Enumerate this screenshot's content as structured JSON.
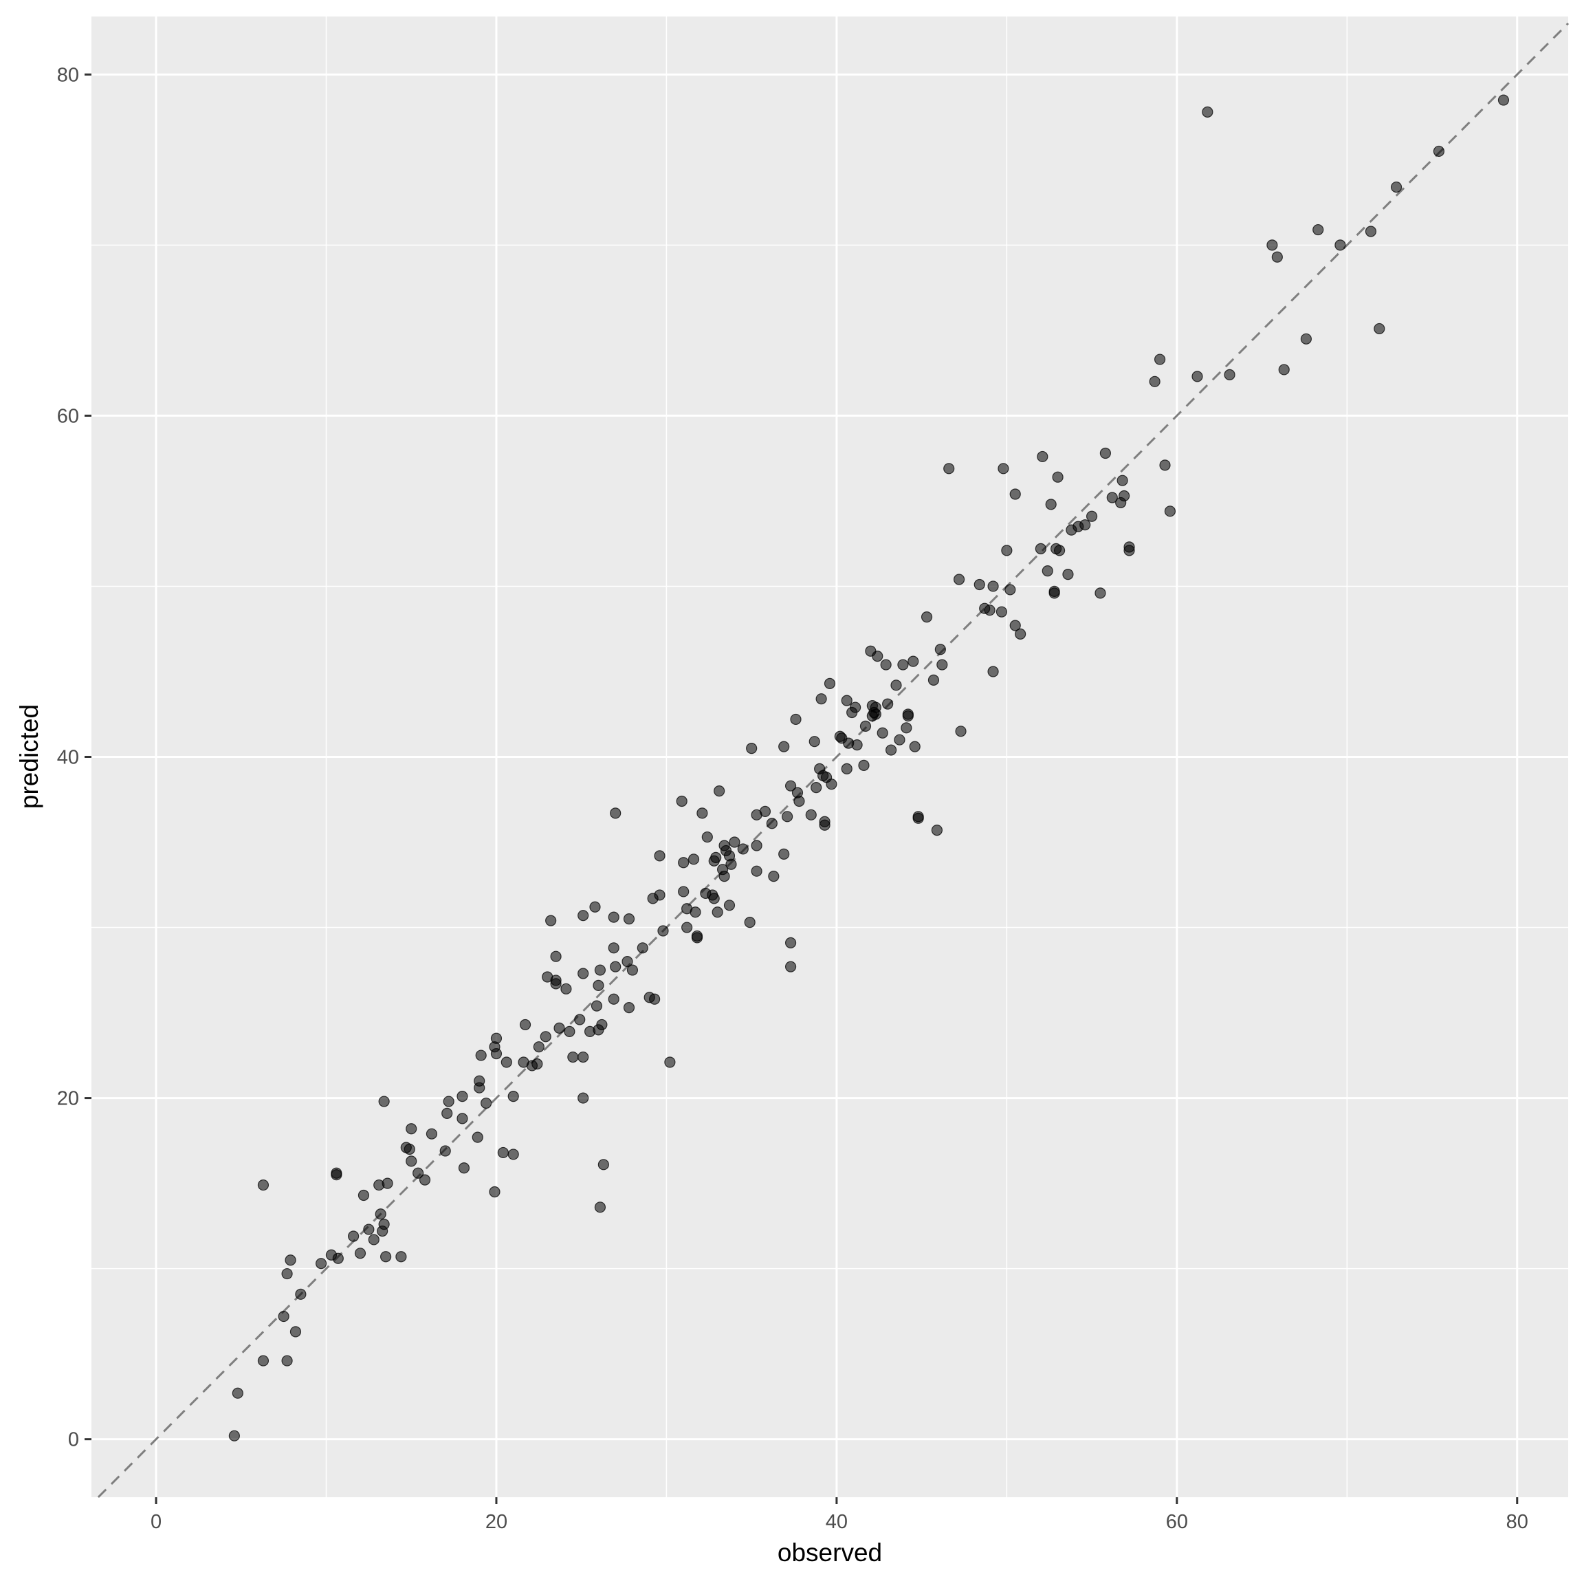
{
  "chart_data": {
    "type": "scatter",
    "title": "",
    "xlabel": "observed",
    "ylabel": "predicted",
    "xlim": [
      -3.8,
      83.0
    ],
    "ylim": [
      -3.4,
      83.4
    ],
    "x_ticks": [
      0,
      20,
      40,
      60,
      80
    ],
    "y_ticks": [
      0,
      20,
      40,
      60,
      80
    ],
    "x_tick_labels": [
      "0",
      "20",
      "40",
      "60",
      "80"
    ],
    "y_tick_labels": [
      "0",
      "20",
      "40",
      "60",
      "80"
    ],
    "grid": true,
    "reference_line": {
      "slope": 1,
      "intercept": 0,
      "style": "dashed"
    },
    "colors": {
      "panel": "#ebebeb",
      "grid": "#ffffff",
      "point": "#000000",
      "point_alpha": 0.55,
      "reference_line": "#7f7f7f"
    },
    "points": [
      [
        4.6,
        0.2
      ],
      [
        4.8,
        2.7
      ],
      [
        6.3,
        4.6
      ],
      [
        7.7,
        4.6
      ],
      [
        7.5,
        7.2
      ],
      [
        8.2,
        6.3
      ],
      [
        8.5,
        8.5
      ],
      [
        7.7,
        9.7
      ],
      [
        7.9,
        10.5
      ],
      [
        6.3,
        14.9
      ],
      [
        9.7,
        10.3
      ],
      [
        10.3,
        10.8
      ],
      [
        10.7,
        10.6
      ],
      [
        10.6,
        15.5
      ],
      [
        10.6,
        15.6
      ],
      [
        11.6,
        11.9
      ],
      [
        12.0,
        10.9
      ],
      [
        12.2,
        14.3
      ],
      [
        12.5,
        12.3
      ],
      [
        12.8,
        11.7
      ],
      [
        13.1,
        14.9
      ],
      [
        13.2,
        13.2
      ],
      [
        13.3,
        12.2
      ],
      [
        13.4,
        12.6
      ],
      [
        13.4,
        19.8
      ],
      [
        13.6,
        15.0
      ],
      [
        13.5,
        10.7
      ],
      [
        14.4,
        10.7
      ],
      [
        14.7,
        17.1
      ],
      [
        14.9,
        17.0
      ],
      [
        15.0,
        18.2
      ],
      [
        15.0,
        16.3
      ],
      [
        15.4,
        15.6
      ],
      [
        15.8,
        15.2
      ],
      [
        16.2,
        17.9
      ],
      [
        17.0,
        16.9
      ],
      [
        17.1,
        19.1
      ],
      [
        17.2,
        19.8
      ],
      [
        18.0,
        20.1
      ],
      [
        18.0,
        18.8
      ],
      [
        18.1,
        15.9
      ],
      [
        18.9,
        17.7
      ],
      [
        19.0,
        20.6
      ],
      [
        19.0,
        21.0
      ],
      [
        19.1,
        22.5
      ],
      [
        19.4,
        19.7
      ],
      [
        19.9,
        14.5
      ],
      [
        19.9,
        23.0
      ],
      [
        20.0,
        22.6
      ],
      [
        20.0,
        23.5
      ],
      [
        20.4,
        16.8
      ],
      [
        20.6,
        22.1
      ],
      [
        21.0,
        16.7
      ],
      [
        21.0,
        20.1
      ],
      [
        21.6,
        22.1
      ],
      [
        21.7,
        24.3
      ],
      [
        22.1,
        21.9
      ],
      [
        22.4,
        22.0
      ],
      [
        22.5,
        23.0
      ],
      [
        22.9,
        23.6
      ],
      [
        23.0,
        27.1
      ],
      [
        23.2,
        30.4
      ],
      [
        23.5,
        28.3
      ],
      [
        23.5,
        26.7
      ],
      [
        23.5,
        26.9
      ],
      [
        23.7,
        24.1
      ],
      [
        24.1,
        26.4
      ],
      [
        24.3,
        23.9
      ],
      [
        24.5,
        22.4
      ],
      [
        24.9,
        24.6
      ],
      [
        25.1,
        22.4
      ],
      [
        25.1,
        27.3
      ],
      [
        25.1,
        20.0
      ],
      [
        25.1,
        30.7
      ],
      [
        25.5,
        23.9
      ],
      [
        25.8,
        31.2
      ],
      [
        25.9,
        25.4
      ],
      [
        26.0,
        26.6
      ],
      [
        26.0,
        24.0
      ],
      [
        26.1,
        13.6
      ],
      [
        26.1,
        27.5
      ],
      [
        26.2,
        24.3
      ],
      [
        26.3,
        16.1
      ],
      [
        26.9,
        30.6
      ],
      [
        26.9,
        28.8
      ],
      [
        26.9,
        25.8
      ],
      [
        27.0,
        27.7
      ],
      [
        27.0,
        36.7
      ],
      [
        27.7,
        28.0
      ],
      [
        27.8,
        30.5
      ],
      [
        27.8,
        25.3
      ],
      [
        28.0,
        27.5
      ],
      [
        28.6,
        28.8
      ],
      [
        29.0,
        25.9
      ],
      [
        29.2,
        31.7
      ],
      [
        29.3,
        25.8
      ],
      [
        29.6,
        31.9
      ],
      [
        29.6,
        34.2
      ],
      [
        29.8,
        29.8
      ],
      [
        30.2,
        22.1
      ],
      [
        30.9,
        37.4
      ],
      [
        31.0,
        33.8
      ],
      [
        31.0,
        32.1
      ],
      [
        31.2,
        31.1
      ],
      [
        31.2,
        30.0
      ],
      [
        31.6,
        34.0
      ],
      [
        31.7,
        30.9
      ],
      [
        31.8,
        29.5
      ],
      [
        31.8,
        29.4
      ],
      [
        32.1,
        36.7
      ],
      [
        32.3,
        32.0
      ],
      [
        32.4,
        35.3
      ],
      [
        32.7,
        31.9
      ],
      [
        32.8,
        31.7
      ],
      [
        32.8,
        33.9
      ],
      [
        32.9,
        34.1
      ],
      [
        33.0,
        30.9
      ],
      [
        33.1,
        38.0
      ],
      [
        33.3,
        33.4
      ],
      [
        33.4,
        33.0
      ],
      [
        33.4,
        34.8
      ],
      [
        33.5,
        34.5
      ],
      [
        33.7,
        31.3
      ],
      [
        33.7,
        34.2
      ],
      [
        33.8,
        33.7
      ],
      [
        34.0,
        35.0
      ],
      [
        34.5,
        34.6
      ],
      [
        34.9,
        30.3
      ],
      [
        35.0,
        40.5
      ],
      [
        35.3,
        34.8
      ],
      [
        35.3,
        36.6
      ],
      [
        35.3,
        33.3
      ],
      [
        35.8,
        36.8
      ],
      [
        36.2,
        36.1
      ],
      [
        36.3,
        33.0
      ],
      [
        36.9,
        34.3
      ],
      [
        36.9,
        40.6
      ],
      [
        37.1,
        36.5
      ],
      [
        37.3,
        38.3
      ],
      [
        37.3,
        27.7
      ],
      [
        37.3,
        29.1
      ],
      [
        37.6,
        42.2
      ],
      [
        37.7,
        37.9
      ],
      [
        37.8,
        37.4
      ],
      [
        38.5,
        36.6
      ],
      [
        38.7,
        40.9
      ],
      [
        38.8,
        38.2
      ],
      [
        39.0,
        39.3
      ],
      [
        39.1,
        43.4
      ],
      [
        39.2,
        38.9
      ],
      [
        39.3,
        36.2
      ],
      [
        39.3,
        36.0
      ],
      [
        39.4,
        38.8
      ],
      [
        39.6,
        44.3
      ],
      [
        39.7,
        38.4
      ],
      [
        40.2,
        41.2
      ],
      [
        40.3,
        41.1
      ],
      [
        40.6,
        39.3
      ],
      [
        40.6,
        43.3
      ],
      [
        40.7,
        40.8
      ],
      [
        40.9,
        42.6
      ],
      [
        41.1,
        42.9
      ],
      [
        41.2,
        40.7
      ],
      [
        41.6,
        39.5
      ],
      [
        41.7,
        41.8
      ],
      [
        42.0,
        46.2
      ],
      [
        42.1,
        42.4
      ],
      [
        42.1,
        43.0
      ],
      [
        42.2,
        42.6
      ],
      [
        42.3,
        42.5
      ],
      [
        42.3,
        42.9
      ],
      [
        42.4,
        45.9
      ],
      [
        42.7,
        41.4
      ],
      [
        42.9,
        45.4
      ],
      [
        43.0,
        43.1
      ],
      [
        43.2,
        40.4
      ],
      [
        43.5,
        44.2
      ],
      [
        43.7,
        41.0
      ],
      [
        43.9,
        45.4
      ],
      [
        44.1,
        41.7
      ],
      [
        44.2,
        42.4
      ],
      [
        44.2,
        42.5
      ],
      [
        44.5,
        45.6
      ],
      [
        44.6,
        40.6
      ],
      [
        44.8,
        36.4
      ],
      [
        44.8,
        36.5
      ],
      [
        45.3,
        48.2
      ],
      [
        45.7,
        44.5
      ],
      [
        45.9,
        35.7
      ],
      [
        46.1,
        46.3
      ],
      [
        46.2,
        45.4
      ],
      [
        46.6,
        56.9
      ],
      [
        47.2,
        50.4
      ],
      [
        47.3,
        41.5
      ],
      [
        48.4,
        50.1
      ],
      [
        48.7,
        48.7
      ],
      [
        49.0,
        48.6
      ],
      [
        49.2,
        50.0
      ],
      [
        49.2,
        45.0
      ],
      [
        49.7,
        48.5
      ],
      [
        49.8,
        56.9
      ],
      [
        50.0,
        52.1
      ],
      [
        50.2,
        49.8
      ],
      [
        50.5,
        55.4
      ],
      [
        50.5,
        47.7
      ],
      [
        50.8,
        47.2
      ],
      [
        52.0,
        52.2
      ],
      [
        52.1,
        57.6
      ],
      [
        52.4,
        50.9
      ],
      [
        52.6,
        54.8
      ],
      [
        52.8,
        49.6
      ],
      [
        52.8,
        49.7
      ],
      [
        52.9,
        52.2
      ],
      [
        53.0,
        56.4
      ],
      [
        53.1,
        52.1
      ],
      [
        53.6,
        50.7
      ],
      [
        53.8,
        53.3
      ],
      [
        54.2,
        53.5
      ],
      [
        54.6,
        53.6
      ],
      [
        55.0,
        54.1
      ],
      [
        55.5,
        49.6
      ],
      [
        55.8,
        57.8
      ],
      [
        56.2,
        55.2
      ],
      [
        56.7,
        54.9
      ],
      [
        56.8,
        56.2
      ],
      [
        56.9,
        55.3
      ],
      [
        57.2,
        52.1
      ],
      [
        57.2,
        52.3
      ],
      [
        58.7,
        62.0
      ],
      [
        59.0,
        63.3
      ],
      [
        59.3,
        57.1
      ],
      [
        59.6,
        54.4
      ],
      [
        61.2,
        62.3
      ],
      [
        61.8,
        77.8
      ],
      [
        63.1,
        62.4
      ],
      [
        65.6,
        70.0
      ],
      [
        65.9,
        69.3
      ],
      [
        66.3,
        62.7
      ],
      [
        67.6,
        64.5
      ],
      [
        68.3,
        70.9
      ],
      [
        69.6,
        70.0
      ],
      [
        71.4,
        70.8
      ],
      [
        71.9,
        65.1
      ],
      [
        72.9,
        73.4
      ],
      [
        75.4,
        75.5
      ],
      [
        79.2,
        78.5
      ]
    ]
  }
}
